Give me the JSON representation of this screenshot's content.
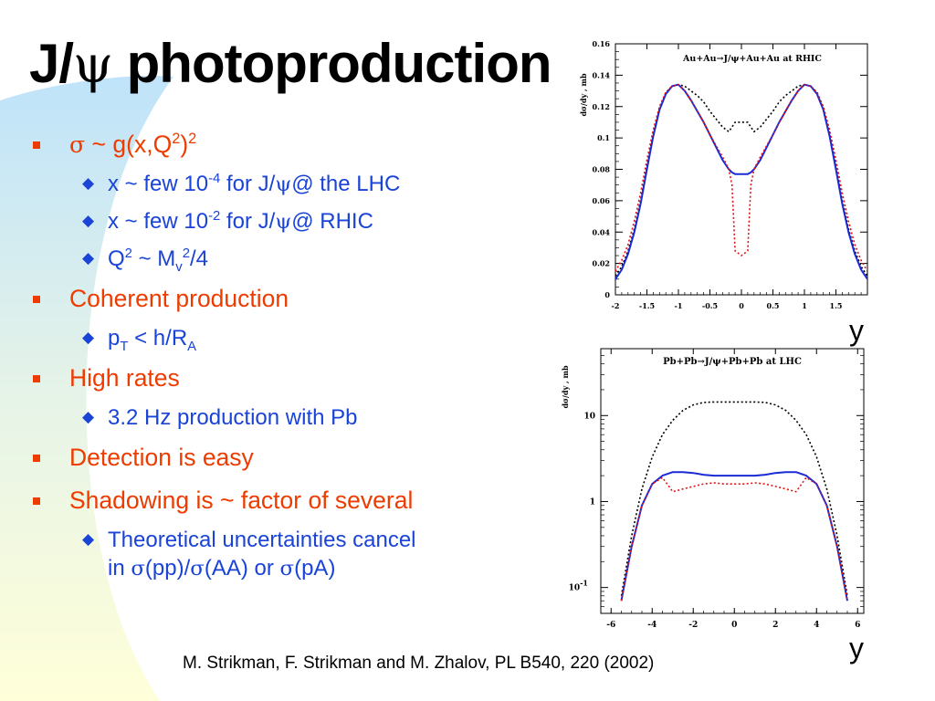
{
  "slide": {
    "title_prefix": "J/",
    "title_psi": "ψ",
    "title_suffix": " photoproduction",
    "citation": "M. Strikman, F. Strikman and M. Zhalov, PL B540, 220 (2002)",
    "colors": {
      "bullet_l1": "#ee3b00",
      "bullet_l2": "#1a43d8",
      "gradient_top": "#bfe3fa",
      "gradient_bottom": "#ffffd9"
    }
  },
  "bullets": {
    "b1": {
      "sigma": "σ",
      "text_a": " ~ g(x,Q",
      "sup": "2",
      "text_b": ")",
      "sup2": "2"
    },
    "b1_sub1": {
      "a": "x ~ few 10",
      "sup": "-4",
      "b": " for J/",
      "psi": "ψ",
      "c": "@ the LHC"
    },
    "b1_sub2": {
      "a": "x ~ few 10",
      "sup": "-2",
      "b": " for J/",
      "psi": "ψ",
      "c": "@ RHIC"
    },
    "b1_sub3": {
      "a": "Q",
      "sup": "2",
      "b": " ~ M",
      "sub": "v",
      "sup2": "2",
      "c": "/4"
    },
    "b2": {
      "text": "Coherent production"
    },
    "b2_sub1": {
      "a": "p",
      "sub": "T",
      "b": " < h/R",
      "sub2": "A"
    },
    "b3": {
      "text": "High rates"
    },
    "b3_sub1": {
      "text": "3.2 Hz production with Pb"
    },
    "b4": {
      "text": "Detection is easy"
    },
    "b5": {
      "text": "Shadowing is ~ factor of several"
    },
    "b5_sub1": {
      "line1": "Theoretical uncertainties cancel",
      "in": "in ",
      "sigma1": "σ",
      "pp": "(pp)/",
      "sigma2": "σ",
      "aa": "(AA) or ",
      "sigma3": "σ",
      "pa": "(pA)"
    }
  },
  "chart_data": [
    {
      "type": "line",
      "title": "Au+Au→J/ψ+Au+Au at RHIC",
      "ylabel": "dσ/dy , mb",
      "xlabel": "y",
      "xlim": [
        -2,
        2
      ],
      "ylim": [
        0,
        0.16
      ],
      "x_ticks": [
        "-2",
        "-1.5",
        "-1",
        "-0.5",
        "0",
        "0.5",
        "1",
        "1.5"
      ],
      "y_ticks": [
        "0",
        "0.02",
        "0.04",
        "0.06",
        "0.08",
        "0.1",
        "0.12",
        "0.14",
        "0.16"
      ],
      "x": [
        -2.0,
        -1.9,
        -1.8,
        -1.7,
        -1.6,
        -1.5,
        -1.4,
        -1.3,
        -1.2,
        -1.1,
        -1.0,
        -0.9,
        -0.8,
        -0.7,
        -0.6,
        -0.5,
        -0.4,
        -0.3,
        -0.2,
        -0.15,
        -0.1,
        0.0,
        0.1,
        0.15,
        0.2,
        0.3,
        0.4,
        0.5,
        0.6,
        0.7,
        0.8,
        0.9,
        1.0,
        1.1,
        1.2,
        1.3,
        1.4,
        1.5,
        1.6,
        1.7,
        1.8,
        1.9,
        2.0
      ],
      "series": [
        {
          "color": "#000000",
          "style": "dotted",
          "values": [
            0.012,
            0.018,
            0.028,
            0.042,
            0.06,
            0.082,
            0.103,
            0.119,
            0.129,
            0.133,
            0.134,
            0.133,
            0.13,
            0.127,
            0.123,
            0.117,
            0.112,
            0.107,
            0.104,
            0.107,
            0.11,
            0.11,
            0.11,
            0.107,
            0.104,
            0.107,
            0.112,
            0.117,
            0.123,
            0.127,
            0.13,
            0.133,
            0.134,
            0.133,
            0.129,
            0.119,
            0.103,
            0.082,
            0.06,
            0.042,
            0.028,
            0.018,
            0.012
          ]
        },
        {
          "color": "#1a2bd6",
          "style": "solid",
          "values": [
            0.01,
            0.016,
            0.026,
            0.04,
            0.058,
            0.08,
            0.101,
            0.118,
            0.128,
            0.133,
            0.134,
            0.13,
            0.124,
            0.117,
            0.11,
            0.102,
            0.094,
            0.086,
            0.08,
            0.078,
            0.077,
            0.077,
            0.077,
            0.078,
            0.08,
            0.086,
            0.094,
            0.102,
            0.11,
            0.117,
            0.124,
            0.13,
            0.134,
            0.133,
            0.128,
            0.118,
            0.101,
            0.08,
            0.058,
            0.04,
            0.026,
            0.016,
            0.01
          ]
        },
        {
          "color": "#e01010",
          "style": "dotted",
          "values": [
            0.015,
            0.022,
            0.032,
            0.047,
            0.065,
            0.086,
            0.105,
            0.12,
            0.129,
            0.133,
            0.134,
            0.13,
            0.124,
            0.117,
            0.11,
            0.102,
            0.095,
            0.088,
            0.08,
            0.07,
            0.028,
            0.025,
            0.028,
            0.07,
            0.08,
            0.088,
            0.095,
            0.102,
            0.11,
            0.117,
            0.124,
            0.13,
            0.134,
            0.133,
            0.129,
            0.12,
            0.105,
            0.086,
            0.065,
            0.047,
            0.032,
            0.022,
            0.015
          ]
        }
      ]
    },
    {
      "type": "line",
      "title": "Pb+Pb→J/ψ+Pb+Pb at LHC",
      "ylabel": "dσ/dy , mb",
      "xlabel": "y",
      "log_y": true,
      "xlim": [
        -6.5,
        6.3
      ],
      "ylim": [
        0.05,
        60
      ],
      "x_ticks": [
        "-6",
        "-4",
        "-2",
        "0",
        "2",
        "4",
        "6"
      ],
      "y_ticks": [
        "10",
        "1",
        "10^-1"
      ],
      "x": [
        -5.5,
        -5.0,
        -4.5,
        -4.0,
        -3.5,
        -3.0,
        -2.5,
        -2.0,
        -1.5,
        -1.0,
        -0.5,
        0.0,
        0.5,
        1.0,
        1.5,
        2.0,
        2.5,
        3.0,
        3.5,
        4.0,
        4.5,
        5.0,
        5.5
      ],
      "series": [
        {
          "color": "#000000",
          "style": "dotted",
          "values": [
            0.08,
            0.4,
            1.4,
            3.3,
            6.0,
            8.8,
            11.5,
            13.3,
            14.2,
            14.4,
            14.4,
            14.4,
            14.4,
            14.4,
            14.2,
            13.3,
            11.5,
            8.8,
            6.0,
            3.3,
            1.4,
            0.4,
            0.08
          ]
        },
        {
          "color": "#1a2bd6",
          "style": "solid",
          "values": [
            0.07,
            0.3,
            0.9,
            1.6,
            2.0,
            2.2,
            2.2,
            2.15,
            2.05,
            2.0,
            2.0,
            2.0,
            2.0,
            2.0,
            2.05,
            2.15,
            2.2,
            2.2,
            2.0,
            1.6,
            0.9,
            0.3,
            0.07
          ]
        },
        {
          "color": "#e01010",
          "style": "dotted",
          "values": [
            0.07,
            0.3,
            0.9,
            1.6,
            1.9,
            1.3,
            1.4,
            1.5,
            1.6,
            1.65,
            1.6,
            1.6,
            1.6,
            1.65,
            1.6,
            1.5,
            1.4,
            1.3,
            1.9,
            1.6,
            0.9,
            0.3,
            0.07
          ]
        }
      ]
    }
  ]
}
